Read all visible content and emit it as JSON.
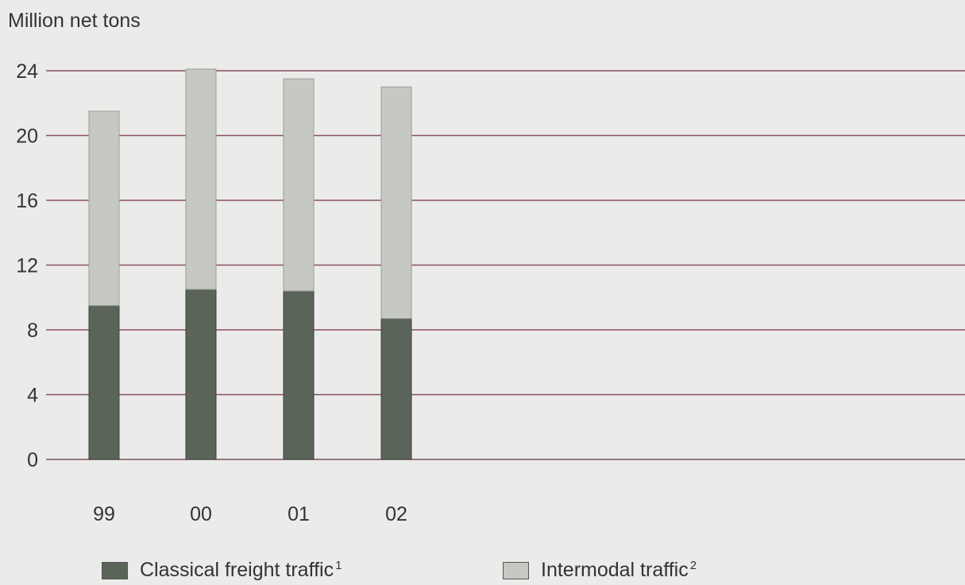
{
  "chart_data": {
    "type": "bar",
    "stacked": true,
    "ylabel": "Million net tons",
    "ylim": [
      0,
      24
    ],
    "yticks": [
      0,
      4,
      8,
      12,
      16,
      20,
      24
    ],
    "categories": [
      "99",
      "00",
      "01",
      "02"
    ],
    "series": [
      {
        "name": "Classical freight traffic",
        "note": "1",
        "color": "#5b6458",
        "values": [
          9.5,
          10.5,
          10.4,
          8.7
        ]
      },
      {
        "name": "Intermodal traffic",
        "note": "2",
        "color": "#c6c8c3",
        "values": [
          12.0,
          13.6,
          13.1,
          14.3
        ]
      }
    ],
    "grid": true,
    "grid_color": "#8a5060",
    "legend_position": "bottom"
  }
}
